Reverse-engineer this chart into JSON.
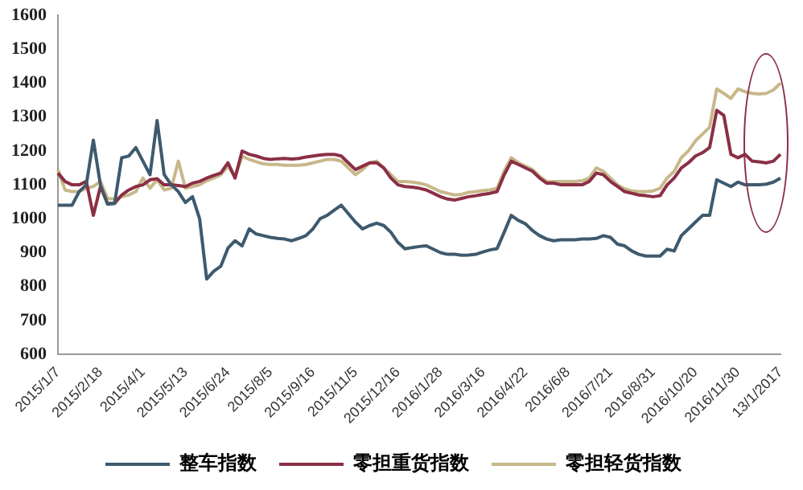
{
  "chart_data": {
    "type": "line",
    "categories": [
      "2015/1/7",
      null,
      null,
      null,
      null,
      null,
      "2015/2/18",
      null,
      null,
      null,
      null,
      null,
      "2015/4/1",
      null,
      null,
      null,
      null,
      null,
      "2015/5/13",
      null,
      null,
      null,
      null,
      null,
      "2015/6/24",
      null,
      null,
      null,
      null,
      null,
      "2015/8/5",
      null,
      null,
      null,
      null,
      null,
      "2015/9/16",
      null,
      null,
      null,
      null,
      null,
      "2015/11/5",
      null,
      null,
      null,
      null,
      null,
      "2015/12/16",
      null,
      null,
      null,
      null,
      null,
      "2016/1/28",
      null,
      null,
      null,
      null,
      null,
      "2016/3/16",
      null,
      null,
      null,
      null,
      null,
      "2016/4/22",
      null,
      null,
      null,
      null,
      null,
      "2016/6/8",
      null,
      null,
      null,
      null,
      null,
      "2016/7/21",
      null,
      null,
      null,
      null,
      null,
      "2016/8/31",
      null,
      null,
      null,
      null,
      null,
      "2016/10/20",
      null,
      null,
      null,
      null,
      null,
      "2016/11/30",
      null,
      null,
      null,
      null,
      null,
      "13/1/2017"
    ],
    "series": [
      {
        "name": "整车指数",
        "color": "#3e5a6e",
        "values": [
          1040,
          1040,
          1040,
          1080,
          1100,
          1232,
          1100,
          1043,
          1045,
          1180,
          1185,
          1210,
          1170,
          1130,
          1290,
          1130,
          1100,
          1080,
          1048,
          1065,
          1000,
          822,
          845,
          860,
          913,
          935,
          920,
          970,
          955,
          950,
          945,
          942,
          940,
          935,
          942,
          950,
          970,
          1000,
          1010,
          1025,
          1040,
          1015,
          990,
          970,
          980,
          987,
          980,
          960,
          930,
          911,
          915,
          918,
          920,
          910,
          900,
          895,
          895,
          892,
          893,
          895,
          902,
          908,
          912,
          960,
          1010,
          995,
          985,
          965,
          950,
          940,
          935,
          938,
          938,
          938,
          940,
          940,
          942,
          950,
          945,
          925,
          920,
          905,
          895,
          890,
          890,
          890,
          910,
          905,
          950,
          970,
          990,
          1010,
          1010,
          1115,
          1105,
          1095,
          1108,
          1100,
          1100,
          1100,
          1102,
          1108,
          1120
        ]
      },
      {
        "name": "零担重货指数",
        "color": "#8b2f45",
        "values": [
          1135,
          1110,
          1100,
          1100,
          1110,
          1010,
          1095,
          1045,
          1045,
          1070,
          1085,
          1095,
          1100,
          1115,
          1118,
          1100,
          1100,
          1098,
          1095,
          1105,
          1110,
          1120,
          1128,
          1135,
          1165,
          1120,
          1200,
          1190,
          1185,
          1178,
          1175,
          1177,
          1178,
          1176,
          1178,
          1182,
          1185,
          1188,
          1190,
          1190,
          1185,
          1165,
          1145,
          1155,
          1165,
          1165,
          1150,
          1120,
          1100,
          1095,
          1093,
          1090,
          1085,
          1075,
          1065,
          1058,
          1055,
          1060,
          1065,
          1068,
          1072,
          1075,
          1080,
          1130,
          1170,
          1160,
          1150,
          1140,
          1120,
          1105,
          1105,
          1100,
          1100,
          1100,
          1100,
          1110,
          1135,
          1130,
          1110,
          1095,
          1080,
          1075,
          1070,
          1068,
          1065,
          1068,
          1100,
          1120,
          1150,
          1165,
          1185,
          1195,
          1210,
          1320,
          1305,
          1190,
          1180,
          1190,
          1170,
          1168,
          1165,
          1170,
          1190
        ]
      },
      {
        "name": "零担轻货指数",
        "color": "#c8b88a",
        "values": [
          1145,
          1085,
          1080,
          1080,
          1090,
          1095,
          1110,
          1060,
          1058,
          1065,
          1070,
          1080,
          1120,
          1090,
          1115,
          1085,
          1090,
          1170,
          1090,
          1095,
          1100,
          1112,
          1120,
          1130,
          1155,
          1125,
          1185,
          1175,
          1168,
          1162,
          1160,
          1160,
          1158,
          1158,
          1158,
          1160,
          1165,
          1170,
          1175,
          1175,
          1170,
          1150,
          1130,
          1145,
          1165,
          1170,
          1150,
          1130,
          1110,
          1110,
          1108,
          1105,
          1100,
          1090,
          1080,
          1075,
          1070,
          1072,
          1078,
          1080,
          1083,
          1085,
          1090,
          1140,
          1180,
          1165,
          1155,
          1145,
          1125,
          1110,
          1110,
          1110,
          1110,
          1110,
          1112,
          1120,
          1150,
          1140,
          1120,
          1100,
          1088,
          1082,
          1080,
          1080,
          1082,
          1090,
          1120,
          1140,
          1180,
          1200,
          1230,
          1250,
          1270,
          1383,
          1370,
          1355,
          1383,
          1375,
          1370,
          1368,
          1370,
          1380,
          1400
        ]
      }
    ],
    "ylim": [
      600,
      1600
    ],
    "yticks": [
      600,
      700,
      800,
      900,
      1000,
      1100,
      1200,
      1300,
      1400,
      1500,
      1600
    ],
    "legend": "bottom",
    "marker": "none"
  }
}
